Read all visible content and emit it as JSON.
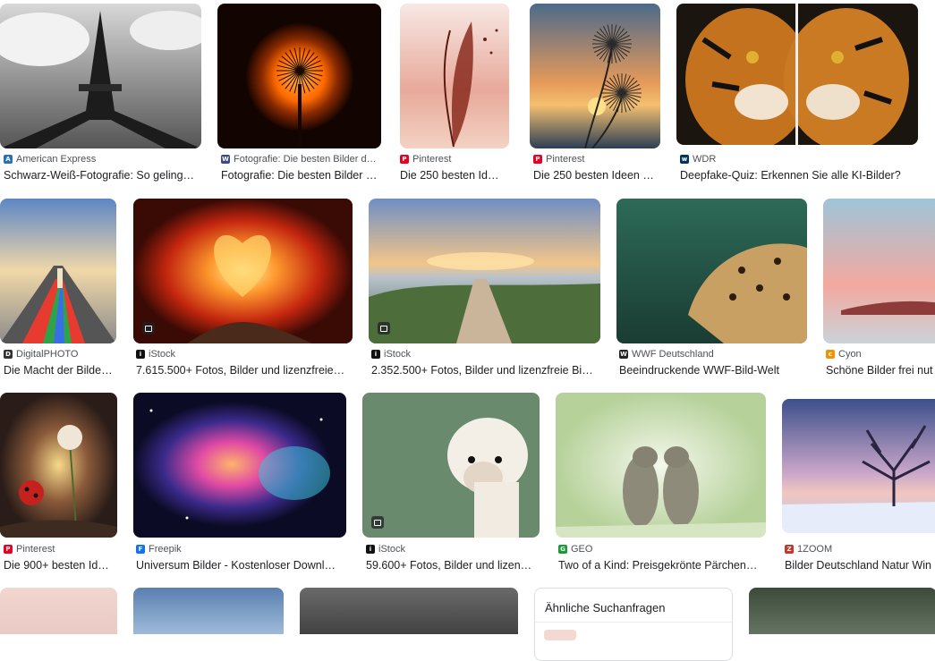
{
  "colors": {
    "source_text": "#4d5156",
    "title_text": "#202124"
  },
  "results": [
    {
      "source": "American Express",
      "title": "Schwarz-Weiß-Fotografie: So geling…",
      "favicon": "american-express-icon",
      "favicon_color": "#2671b9",
      "favicon_glyph": "A"
    },
    {
      "source": "Fotografie: Die besten Bilder d…",
      "title": "Fotografie: Die besten Bilder …",
      "favicon": "photo-site-icon",
      "favicon_color": "#3b4a87",
      "favicon_glyph": "W"
    },
    {
      "source": "Pinterest",
      "title": "Die 250 besten Idee…",
      "favicon": "pinterest-icon",
      "favicon_color": "#e60023",
      "favicon_glyph": "P"
    },
    {
      "source": "Pinterest",
      "title": "Die 250 besten Ideen …",
      "favicon": "pinterest-icon",
      "favicon_color": "#e60023",
      "favicon_glyph": "P"
    },
    {
      "source": "WDR",
      "title": "Deepfake-Quiz: Erkennen Sie alle KI-Bilder?",
      "favicon": "wdr-icon",
      "favicon_color": "#00345e",
      "favicon_glyph": "w"
    },
    {
      "source": "DigitalPHOTO",
      "title": "Die Macht der Bilde…",
      "favicon": "digitalphoto-icon",
      "favicon_color": "#333333",
      "favicon_glyph": "D"
    },
    {
      "source": "iStock",
      "title": "7.615.500+ Fotos, Bilder und lizenzfreie…",
      "favicon": "istock-icon",
      "favicon_color": "#111111",
      "favicon_glyph": "i"
    },
    {
      "source": "iStock",
      "title": "2.352.500+ Fotos, Bilder und lizenzfreie Bi…",
      "favicon": "istock-icon",
      "favicon_color": "#111111",
      "favicon_glyph": "i"
    },
    {
      "source": "WWF Deutschland",
      "title": "Beeindruckende WWF-Bild-Welt",
      "favicon": "wwf-panda-icon",
      "favicon_color": "#222222",
      "favicon_glyph": "W"
    },
    {
      "source": "Cyon",
      "title": "Schöne Bilder frei nut",
      "favicon": "cyon-icon",
      "favicon_color": "#f29400",
      "favicon_glyph": "c"
    },
    {
      "source": "Pinterest",
      "title": "Die 900+ besten Ide…",
      "favicon": "pinterest-icon",
      "favicon_color": "#e60023",
      "favicon_glyph": "P"
    },
    {
      "source": "Freepik",
      "title": "Universum Bilder - Kostenloser Downl…",
      "favicon": "freepik-icon",
      "favicon_color": "#1273eb",
      "favicon_glyph": "F"
    },
    {
      "source": "iStock",
      "title": "59.600+ Fotos, Bilder und lizen…",
      "favicon": "istock-icon",
      "favicon_color": "#111111",
      "favicon_glyph": "i"
    },
    {
      "source": "GEO",
      "title": "Two of a Kind: Preisgekrönte Pärchen…",
      "favicon": "geo-icon",
      "favicon_color": "#1a9b3a",
      "favicon_glyph": "G"
    },
    {
      "source": "1ZOOM",
      "title": "Bilder Deutschland Natur Win",
      "favicon": "1zoom-icon",
      "favicon_color": "#c0392b",
      "favicon_glyph": "Z"
    }
  ],
  "related_searches": {
    "title": "Ähnliche Suchanfragen"
  }
}
